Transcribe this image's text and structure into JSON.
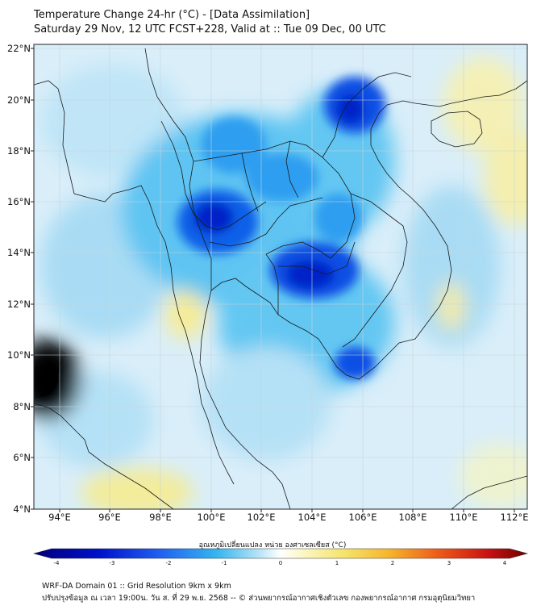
{
  "header": {
    "title_line1": "Temperature Change 24-hr (°C) - [Data Assimilation]",
    "title_line2": "Saturday 29 Nov, 12 UTC FCST+228, Valid at :: Tue 09 Dec, 00 UTC"
  },
  "axes": {
    "lat_labels": [
      "22°N",
      "20°N",
      "18°N",
      "16°N",
      "14°N",
      "12°N",
      "10°N",
      "8°N",
      "6°N",
      "4°N"
    ],
    "lon_labels": [
      "94°E",
      "96°E",
      "98°E",
      "100°E",
      "102°E",
      "104°E",
      "106°E",
      "108°E",
      "110°E",
      "112°E"
    ]
  },
  "colorbar": {
    "label": "อุณหภูมิเปลี่ยนแปลง หน่วย องศาเซลเซียส (°C)",
    "ticks": [
      "-4",
      "-3",
      "-2",
      "-1",
      "0",
      "1",
      "2",
      "3",
      "4"
    ],
    "range": [
      -4,
      4
    ]
  },
  "footer": {
    "line1": "WRF-DA Domain 01 :: Grid Resolution 9km x 9km",
    "line2": "ปรับปรุงข้อมูล ณ เวลา 19:00น. วัน ส. ที่ 29 พ.ย. 2568 -- © ส่วนพยากรณ์อากาศเชิงตัวเลข กองพยากรณ์อากาศ กรมอุตุนิยมวิทยา"
  },
  "colors": {
    "background": "#ffffff",
    "neutral": "#e8f4fb",
    "light_blue": "#a7dcf5",
    "mid_blue": "#34b5f0",
    "strong_blue": "#0a55e6",
    "deep_blue": "#0018c9",
    "warm_yellow": "#f7f0a0"
  }
}
